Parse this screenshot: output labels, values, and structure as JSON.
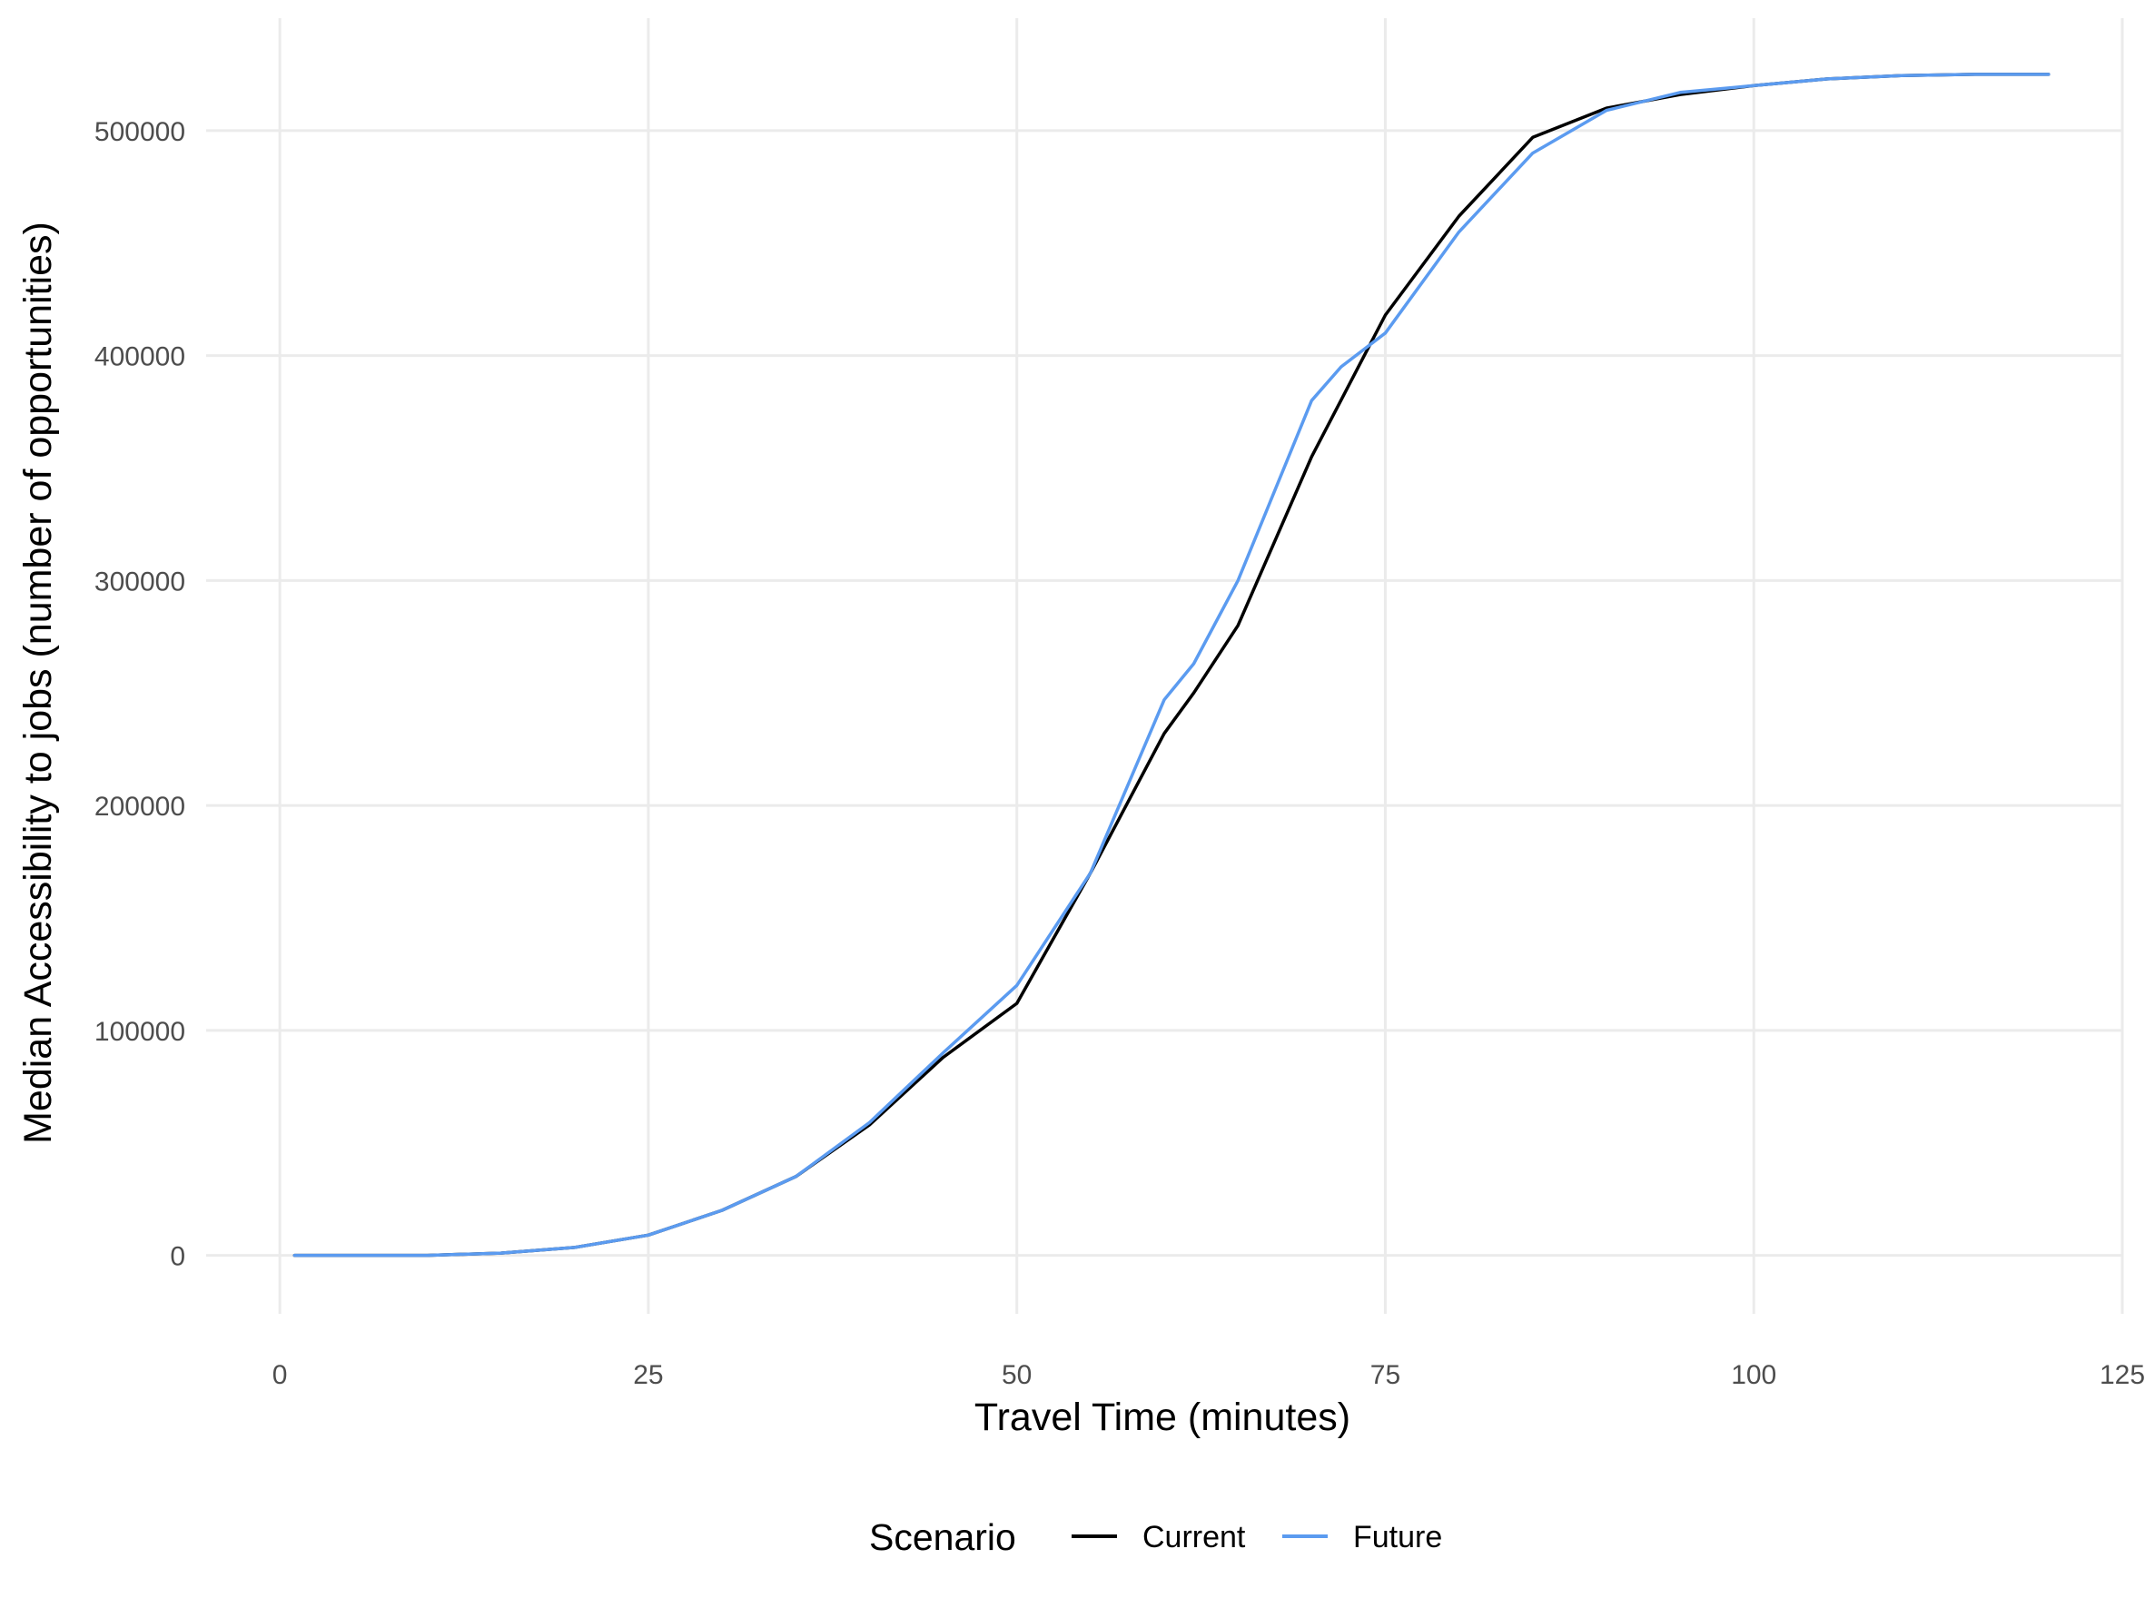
{
  "chart_data": {
    "type": "line",
    "xlabel": "Travel Time (minutes)",
    "ylabel": "Median Accessibility to jobs (number of opportunities)",
    "xlim": [
      -5,
      125
    ],
    "ylim": [
      -26000,
      550000
    ],
    "x_ticks": [
      0,
      25,
      50,
      75,
      100,
      125
    ],
    "y_ticks": [
      0,
      100000,
      200000,
      300000,
      400000,
      500000
    ],
    "grid": true,
    "legend": {
      "title": "Scenario",
      "position": "bottom"
    },
    "series": [
      {
        "name": "Current",
        "color": "#000000",
        "x": [
          1,
          5,
          10,
          15,
          20,
          25,
          30,
          35,
          40,
          45,
          50,
          55,
          60,
          62,
          65,
          70,
          75,
          80,
          85,
          90,
          95,
          100,
          105,
          110,
          115,
          120
        ],
        "y": [
          0,
          0,
          0,
          1000,
          3500,
          9000,
          20000,
          35000,
          58000,
          88000,
          112000,
          170000,
          232000,
          250000,
          280000,
          355000,
          418000,
          462000,
          497000,
          510000,
          516000,
          520000,
          523000,
          524500,
          525000,
          525000
        ]
      },
      {
        "name": "Future",
        "color": "#5b9bf0",
        "x": [
          1,
          5,
          10,
          15,
          20,
          25,
          30,
          35,
          40,
          45,
          50,
          55,
          60,
          62,
          65,
          70,
          72,
          75,
          80,
          85,
          90,
          95,
          100,
          105,
          110,
          115,
          120
        ],
        "y": [
          0,
          0,
          0,
          1000,
          3500,
          9000,
          20000,
          35000,
          59000,
          90000,
          120000,
          170000,
          247000,
          263000,
          300000,
          380000,
          395000,
          410000,
          455000,
          490000,
          509000,
          517000,
          520000,
          523000,
          524500,
          525000,
          525000
        ]
      }
    ]
  }
}
